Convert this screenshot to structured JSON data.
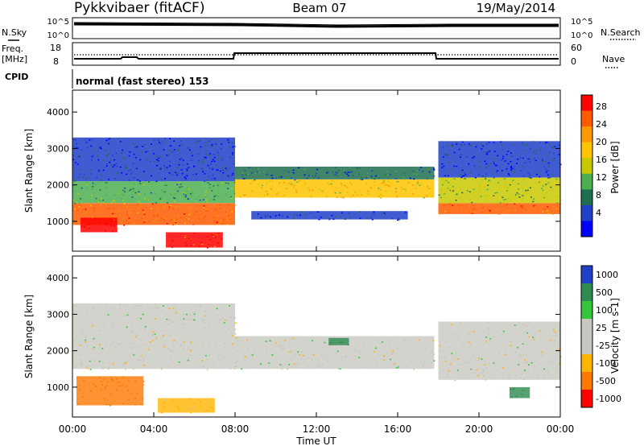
{
  "header": {
    "station": "Pykkvibaer (fitACF)",
    "beam": "Beam 07",
    "date": "19/May/2014"
  },
  "top_panels": {
    "nsky_label": "N.Sky",
    "nsearch_label": "N.Search",
    "noise_ticks": [
      "10^5",
      "10^0"
    ],
    "freq_label_1": "Freq.",
    "freq_label_2": "[MHz]",
    "freq_ticks": [
      "18",
      "8"
    ],
    "nave_label": "Nave",
    "nave_ticks": [
      "60",
      "0"
    ],
    "cpid_label": "CPID",
    "cpid_value": "normal (fast stereo) 153"
  },
  "axes": {
    "ylabel": "Slant Range [km]",
    "y_ticks": [
      "4000",
      "3000",
      "2000",
      "1000"
    ],
    "xlabel": "Time UT",
    "x_ticks": [
      "00:00",
      "04:00",
      "08:00",
      "12:00",
      "16:00",
      "20:00",
      "00:00"
    ]
  },
  "power_colorbar": {
    "label": "Power [dB]",
    "ticks": [
      "28",
      "24",
      "20",
      "16",
      "12",
      "8",
      "4"
    ],
    "colors": [
      "#ff0000",
      "#ff5a00",
      "#ff9800",
      "#ffc400",
      "#c8c800",
      "#4caf50",
      "#1e6e50",
      "#2040c8",
      "#0000ff"
    ]
  },
  "velocity_colorbar": {
    "label": "Velocity [m s-1]",
    "ticks": [
      "1000",
      "500",
      "100",
      "25",
      "-25",
      "-100",
      "-500",
      "-1000"
    ],
    "colors": [
      "#2040c8",
      "#2e8a50",
      "#36c43c",
      "#c8c8c0",
      "#c8c8c0",
      "#ffb400",
      "#ff7800",
      "#ff0000"
    ]
  },
  "chart_data": {
    "type": "heatmap",
    "title": "Pykkvibaer (fitACF) Beam 07 19/May/2014",
    "x_range_hours": [
      0,
      24
    ],
    "y_range_km": [
      180,
      4600
    ],
    "grid": false,
    "power_layers": [
      {
        "t0": 0.0,
        "t1": 8.0,
        "r0": 900,
        "r1": 1500,
        "level": 22
      },
      {
        "t0": 0.0,
        "t1": 8.0,
        "r0": 1500,
        "r1": 2100,
        "level": 10
      },
      {
        "t0": 0.0,
        "t1": 8.0,
        "r0": 2100,
        "r1": 3300,
        "level": 4
      },
      {
        "t0": 0.4,
        "t1": 2.2,
        "r0": 700,
        "r1": 1100,
        "level": 28
      },
      {
        "t0": 4.6,
        "t1": 7.4,
        "r0": 280,
        "r1": 700,
        "level": 26
      },
      {
        "t0": 8.0,
        "t1": 17.8,
        "r0": 1650,
        "r1": 2150,
        "level": 16
      },
      {
        "t0": 8.0,
        "t1": 17.8,
        "r0": 2150,
        "r1": 2500,
        "level": 6
      },
      {
        "t0": 8.8,
        "t1": 16.5,
        "r0": 1050,
        "r1": 1280,
        "level": 4
      },
      {
        "t0": 18.0,
        "t1": 24.0,
        "r0": 1200,
        "r1": 1500,
        "level": 22
      },
      {
        "t0": 18.0,
        "t1": 24.0,
        "r0": 1500,
        "r1": 2200,
        "level": 12
      },
      {
        "t0": 18.0,
        "t1": 24.0,
        "r0": 2200,
        "r1": 3200,
        "level": 4
      }
    ],
    "velocity_layers": [
      {
        "t0": 0.0,
        "t1": 8.0,
        "r0": 1500,
        "r1": 3300,
        "vel": 0
      },
      {
        "t0": 0.2,
        "t1": 3.5,
        "r0": 500,
        "r1": 1300,
        "vel": -300
      },
      {
        "t0": 4.2,
        "t1": 7.0,
        "r0": 300,
        "r1": 700,
        "vel": -120
      },
      {
        "t0": 8.0,
        "t1": 17.8,
        "r0": 1500,
        "r1": 2400,
        "vel": 0
      },
      {
        "t0": 12.6,
        "t1": 13.6,
        "r0": 2150,
        "r1": 2350,
        "vel": 300
      },
      {
        "t0": 18.0,
        "t1": 24.0,
        "r0": 1200,
        "r1": 2800,
        "vel": 0
      },
      {
        "t0": 21.5,
        "t1": 22.5,
        "r0": 700,
        "r1": 1000,
        "vel": 600
      }
    ]
  }
}
